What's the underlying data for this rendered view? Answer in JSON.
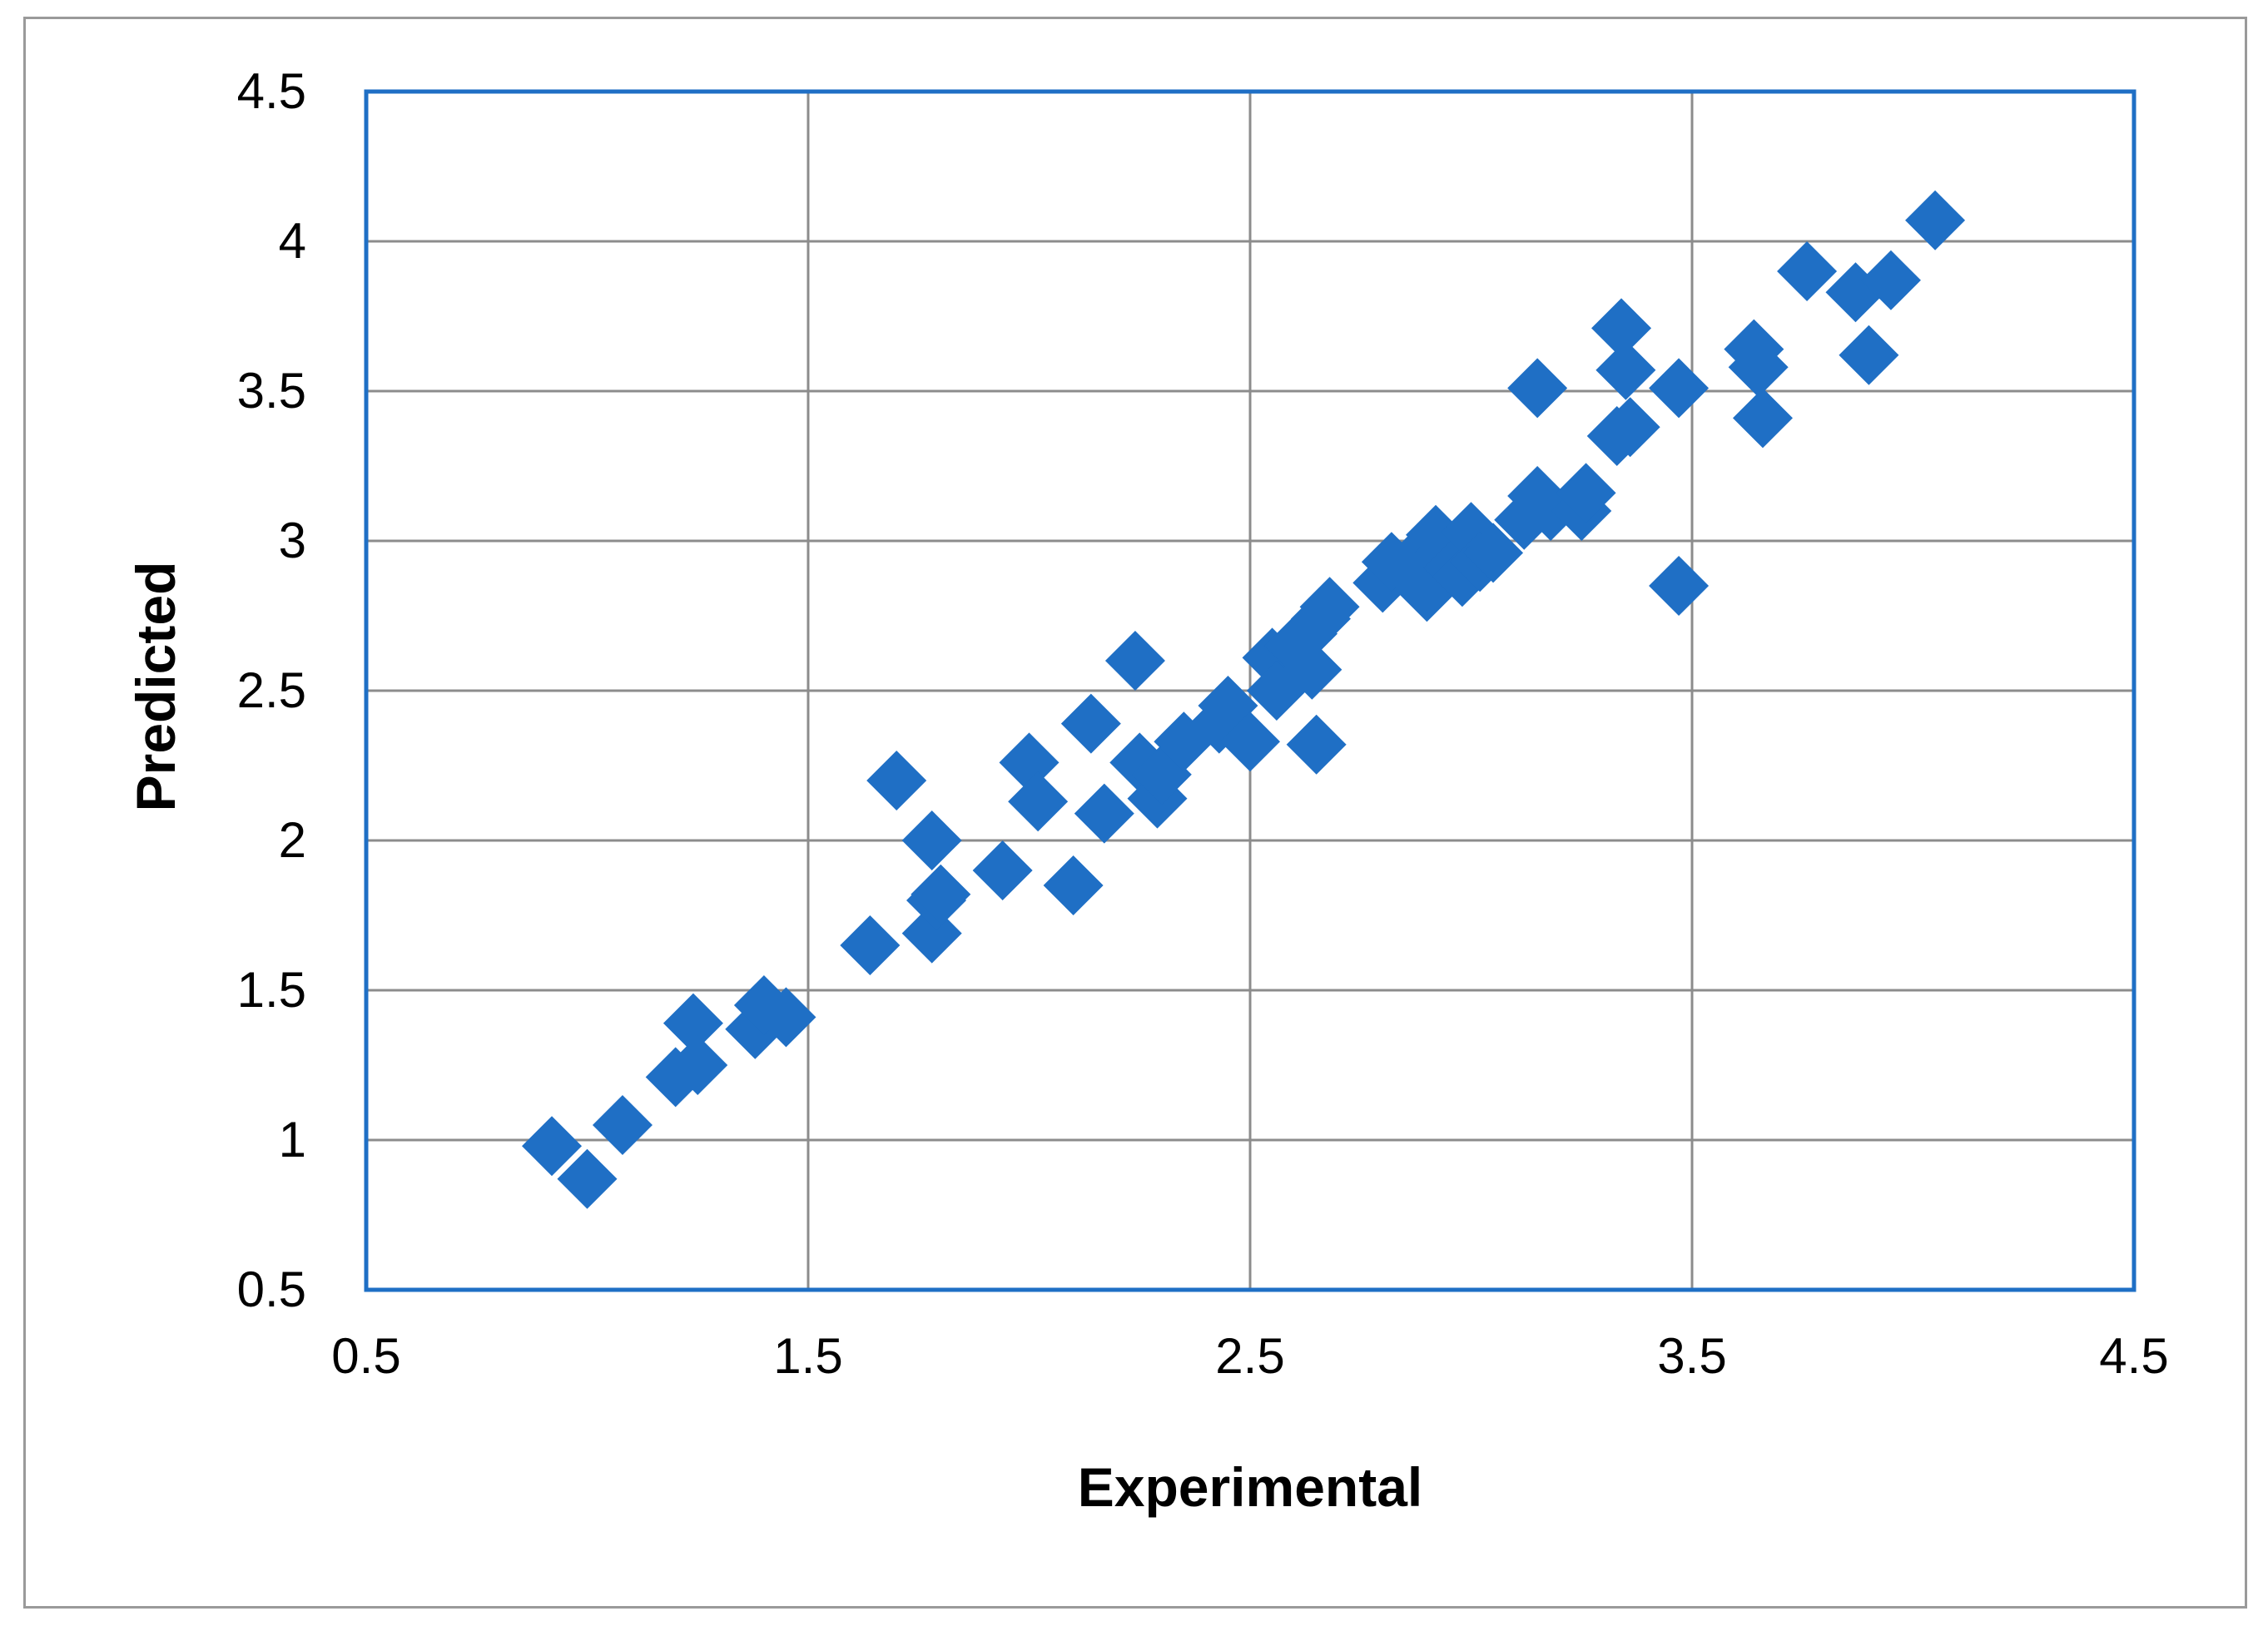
{
  "chart_data": {
    "type": "scatter",
    "title": "",
    "xlabel": "Experimental",
    "ylabel": "Predicted",
    "xlim": [
      0.5,
      4.5
    ],
    "ylim": [
      0.5,
      4.5
    ],
    "x_ticks": [
      "0.5",
      "1.5",
      "2.5",
      "3.5",
      "4.5"
    ],
    "y_ticks": [
      "0.5",
      "1",
      "1.5",
      "2",
      "2.5",
      "3",
      "3.5",
      "4",
      "4.5"
    ],
    "grid": true,
    "legend": "none",
    "marker": "diamond",
    "series": [
      {
        "color": "#1F6FC5",
        "points": [
          [
            0.92,
            0.98
          ],
          [
            1.0,
            0.87
          ],
          [
            1.08,
            1.05
          ],
          [
            1.2,
            1.21
          ],
          [
            1.24,
            1.39
          ],
          [
            1.25,
            1.25
          ],
          [
            1.38,
            1.37
          ],
          [
            1.4,
            1.45
          ],
          [
            1.45,
            1.41
          ],
          [
            1.64,
            1.65
          ],
          [
            1.7,
            2.2
          ],
          [
            1.78,
            2.0
          ],
          [
            1.78,
            1.69
          ],
          [
            1.79,
            1.8
          ],
          [
            1.8,
            1.82
          ],
          [
            1.94,
            1.9
          ],
          [
            2.0,
            2.26
          ],
          [
            2.02,
            2.13
          ],
          [
            2.1,
            1.85
          ],
          [
            2.14,
            2.39
          ],
          [
            2.17,
            2.09
          ],
          [
            2.24,
            2.6
          ],
          [
            2.25,
            2.26
          ],
          [
            2.29,
            2.14
          ],
          [
            2.3,
            2.22
          ],
          [
            2.35,
            2.33
          ],
          [
            2.43,
            2.39
          ],
          [
            2.45,
            2.45
          ],
          [
            2.5,
            2.33
          ],
          [
            2.55,
            2.61
          ],
          [
            2.56,
            2.5
          ],
          [
            2.6,
            2.65
          ],
          [
            2.63,
            2.69
          ],
          [
            2.64,
            2.57
          ],
          [
            2.65,
            2.32
          ],
          [
            2.66,
            2.74
          ],
          [
            2.68,
            2.78
          ],
          [
            2.8,
            2.86
          ],
          [
            2.82,
            2.93
          ],
          [
            2.86,
            2.9
          ],
          [
            2.88,
            2.95
          ],
          [
            2.9,
            2.83
          ],
          [
            2.92,
            3.02
          ],
          [
            2.94,
            2.96
          ],
          [
            2.96,
            2.91
          ],
          [
            2.98,
            2.88
          ],
          [
            3.0,
            3.03
          ],
          [
            3.02,
            2.93
          ],
          [
            3.05,
            2.96
          ],
          [
            3.12,
            3.07
          ],
          [
            3.15,
            3.15
          ],
          [
            3.15,
            3.51
          ],
          [
            3.18,
            3.1
          ],
          [
            3.25,
            3.1
          ],
          [
            3.26,
            3.16
          ],
          [
            3.33,
            3.35
          ],
          [
            3.34,
            3.71
          ],
          [
            3.35,
            3.57
          ],
          [
            3.36,
            3.38
          ],
          [
            3.47,
            2.85
          ],
          [
            3.47,
            3.51
          ],
          [
            3.64,
            3.64
          ],
          [
            3.65,
            3.58
          ],
          [
            3.66,
            3.41
          ],
          [
            3.76,
            3.9
          ],
          [
            3.87,
            3.83
          ],
          [
            3.9,
            3.62
          ],
          [
            3.95,
            3.87
          ],
          [
            4.05,
            4.07
          ]
        ]
      }
    ]
  }
}
